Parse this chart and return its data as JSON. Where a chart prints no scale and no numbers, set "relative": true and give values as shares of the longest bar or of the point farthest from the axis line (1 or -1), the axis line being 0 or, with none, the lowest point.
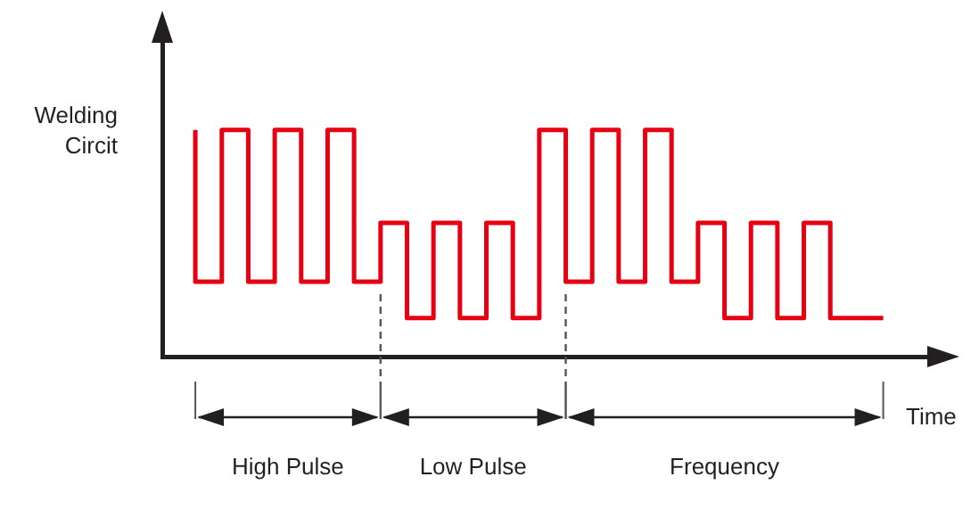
{
  "chart_data": {
    "type": "step",
    "relative": true,
    "ylabel": "Welding Circit",
    "xlabel": "Time",
    "categories": [
      null,
      null,
      null,
      null,
      null,
      null,
      null,
      null,
      null,
      null,
      null,
      null,
      null,
      null,
      null,
      null,
      null,
      null,
      null,
      null,
      null,
      null,
      null,
      null,
      null,
      null,
      null
    ],
    "series": [
      {
        "color": "#e60012",
        "values": [
          1,
          0.33,
          1,
          0.33,
          1,
          0.33,
          1,
          0.33,
          0.59,
          0.17,
          0.59,
          0.17,
          0.59,
          0.17,
          1,
          0.33,
          1,
          0.33,
          1,
          0.33,
          0.59,
          0.17,
          0.59,
          0.17,
          0.59,
          0.17,
          0.17
        ]
      }
    ],
    "annotations": [
      "High Pulse",
      "Low Pulse",
      "Frequency"
    ],
    "legend": false,
    "grid": false
  }
}
